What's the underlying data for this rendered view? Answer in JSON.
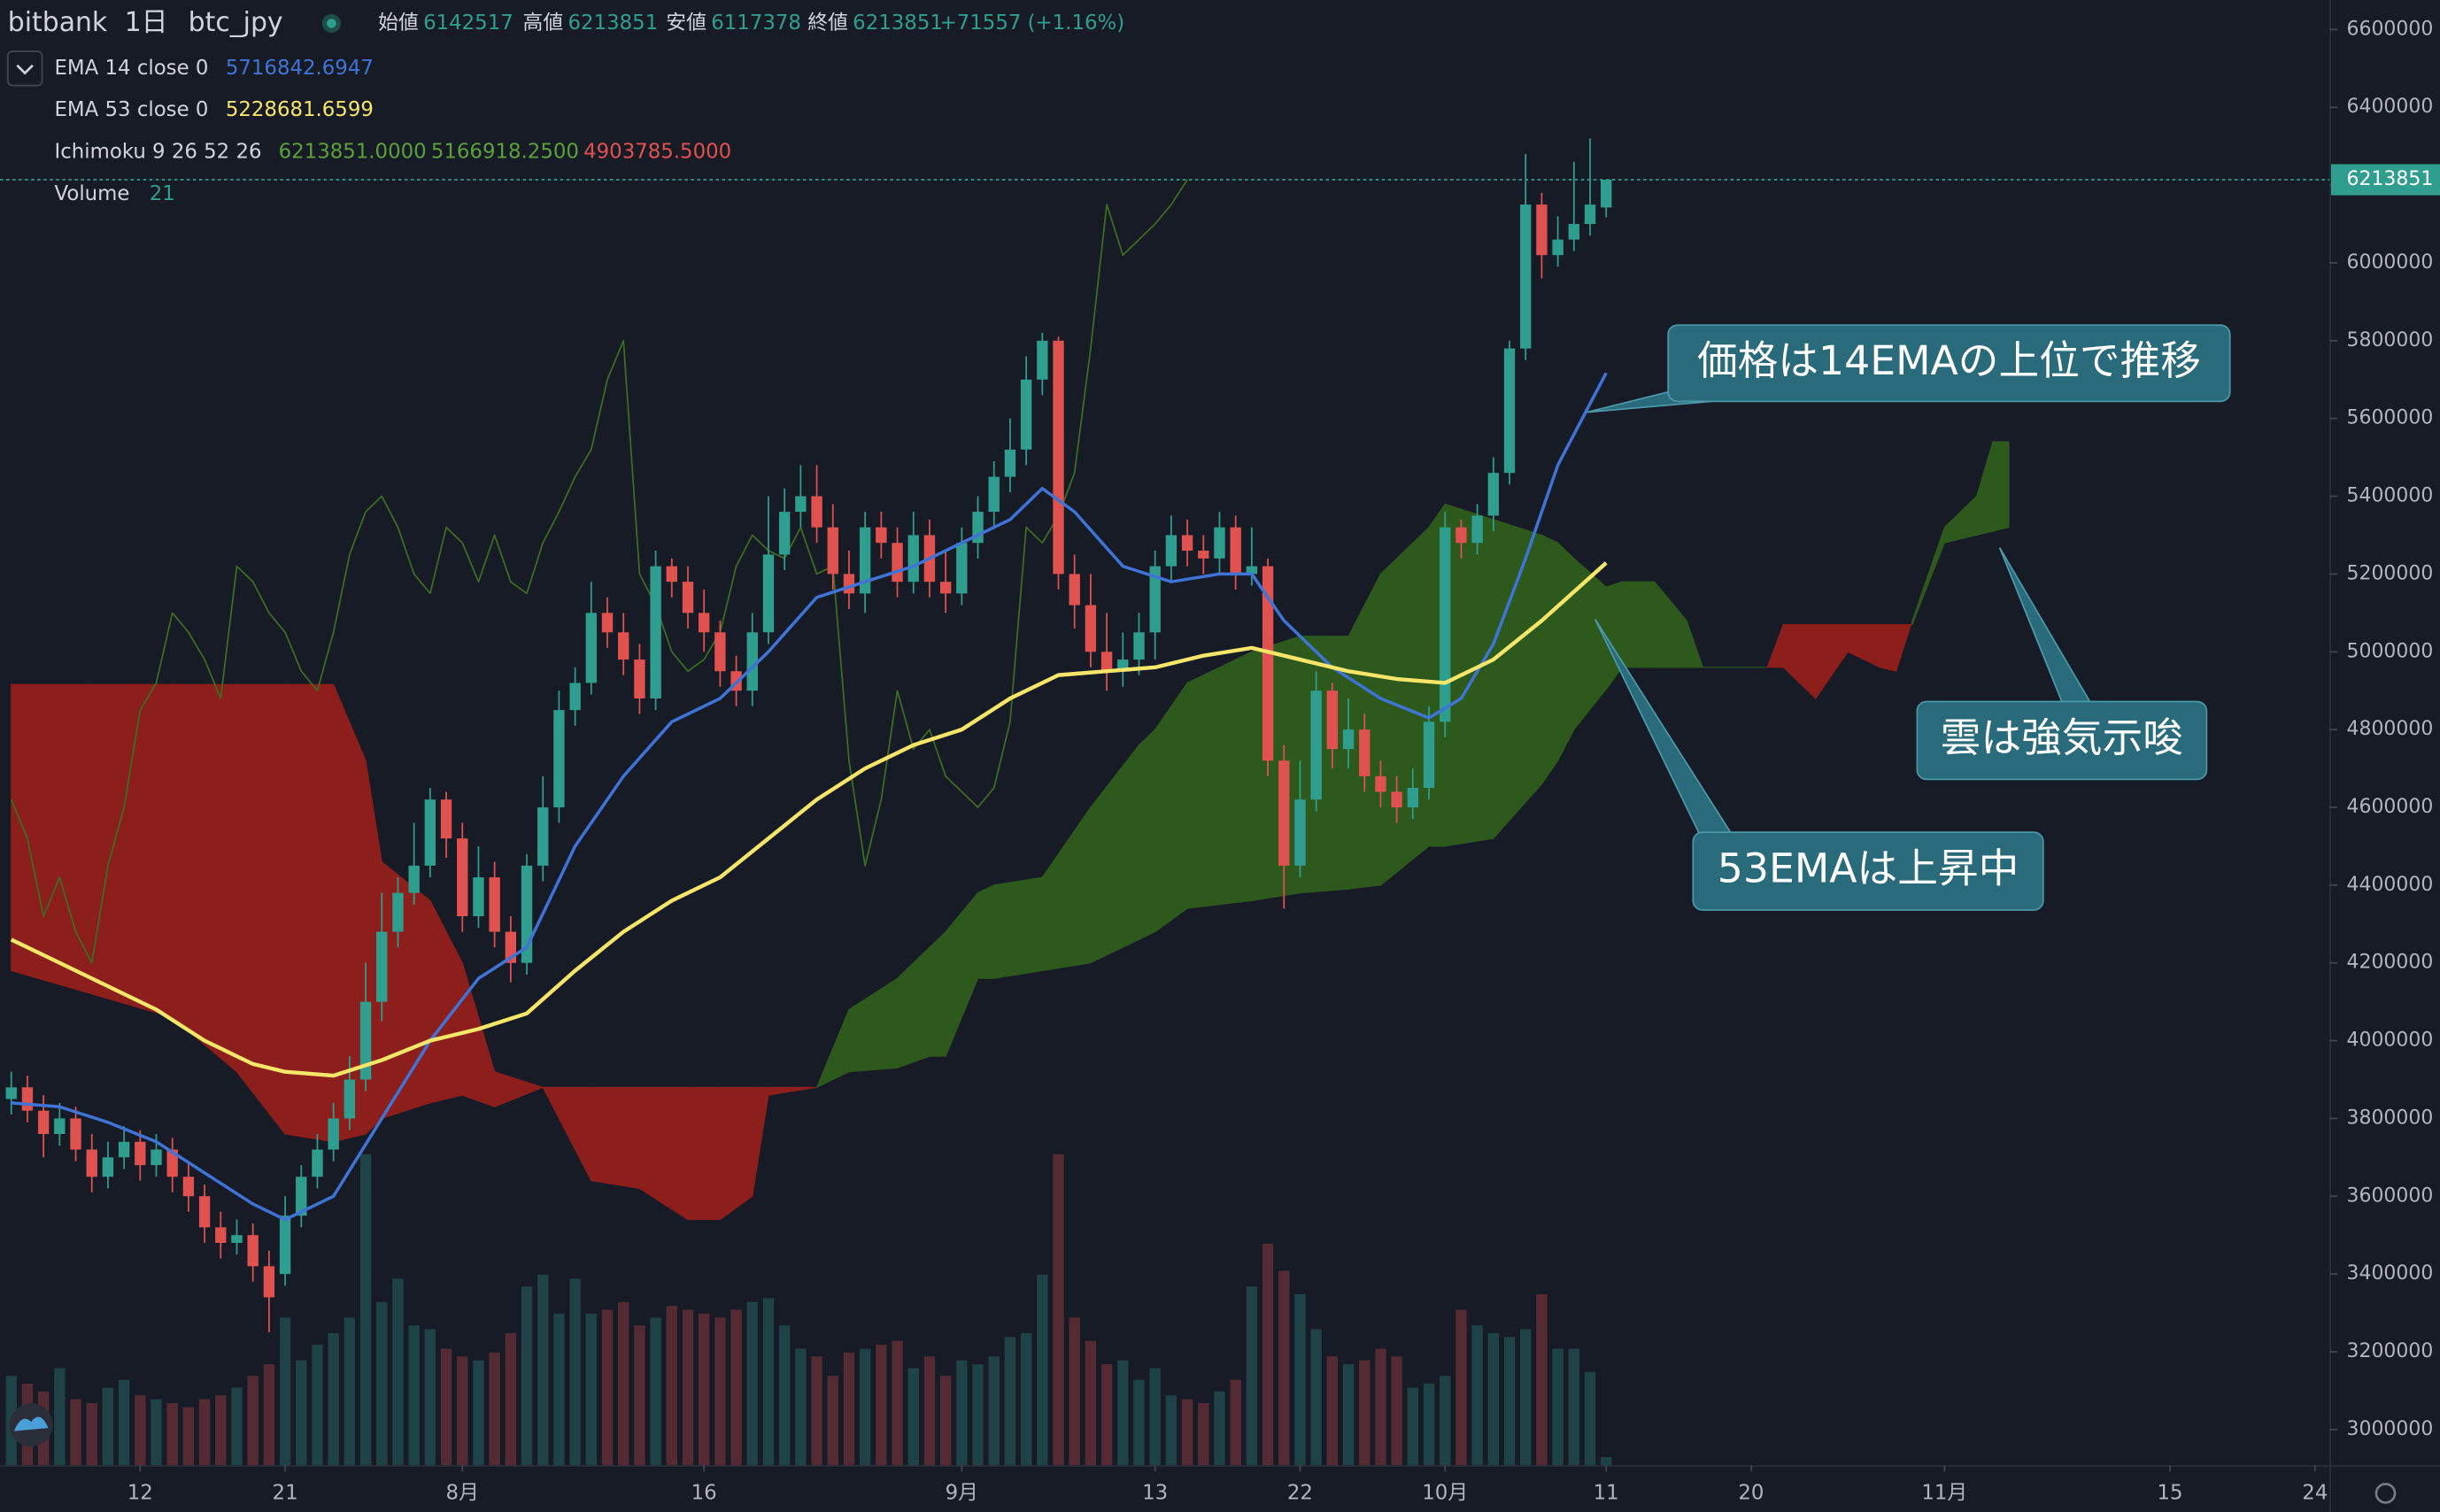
{
  "chart_data": {
    "type": "candlestick",
    "exchange": "bitbank",
    "interval": "1日",
    "symbol": "btc_jpy",
    "ohlc_labels": [
      "始値",
      "高値",
      "安値",
      "終値"
    ],
    "change": "+71557 (+1.16%)",
    "up_color": "#2f9e8f",
    "down_color": "#e0524f",
    "open": [
      3850000,
      3880000,
      3820000,
      3760000,
      3800000,
      3720000,
      3650000,
      3700000,
      3740000,
      3680000,
      3720000,
      3650000,
      3600000,
      3520000,
      3480000,
      3500000,
      3420000,
      3400000,
      3550000,
      3650000,
      3720000,
      3800000,
      3900000,
      4100000,
      4280000,
      4380000,
      4450000,
      4620000,
      4520000,
      4320000,
      4420000,
      4280000,
      4200000,
      4450000,
      4600000,
      4850000,
      4920000,
      5100000,
      5050000,
      4980000,
      4880000,
      5220000,
      5180000,
      5100000,
      5050000,
      4950000,
      4900000,
      5050000,
      5250000,
      5360000,
      5400000,
      5320000,
      5200000,
      5150000,
      5320000,
      5280000,
      5180000,
      5300000,
      5180000,
      5150000,
      5280000,
      5360000,
      5450000,
      5520000,
      5700000,
      5800000,
      5200000,
      5120000,
      5000000,
      4950000,
      4980000,
      5050000,
      5220000,
      5300000,
      5260000,
      5240000,
      5320000,
      5200000,
      5220000,
      4720000,
      4450000,
      4620000,
      4900000,
      4750000,
      4800000,
      4680000,
      4640000,
      4600000,
      4650000,
      4820000,
      5320000,
      5280000,
      5350000,
      5460000,
      5780000,
      6150000,
      6020000,
      6060000,
      6100000,
      6142517
    ],
    "high": [
      3920000,
      3910000,
      3860000,
      3840000,
      3830000,
      3760000,
      3740000,
      3780000,
      3770000,
      3760000,
      3750000,
      3690000,
      3630000,
      3560000,
      3540000,
      3530000,
      3460000,
      3600000,
      3680000,
      3760000,
      3840000,
      3960000,
      4200000,
      4380000,
      4420000,
      4560000,
      4650000,
      4640000,
      4560000,
      4500000,
      4460000,
      4320000,
      4480000,
      4680000,
      4900000,
      4960000,
      5180000,
      5140000,
      5100000,
      5020000,
      5260000,
      5240000,
      5220000,
      5160000,
      5080000,
      4990000,
      5100000,
      5400000,
      5420000,
      5480000,
      5480000,
      5380000,
      5260000,
      5360000,
      5360000,
      5320000,
      5360000,
      5340000,
      5260000,
      5320000,
      5400000,
      5490000,
      5600000,
      5760000,
      5820000,
      5810000,
      5250000,
      5200000,
      5100000,
      5050000,
      5100000,
      5260000,
      5350000,
      5340000,
      5300000,
      5360000,
      5350000,
      5320000,
      5240000,
      4760000,
      4720000,
      4950000,
      4920000,
      4880000,
      4840000,
      4720000,
      4680000,
      4700000,
      4860000,
      5360000,
      5340000,
      5380000,
      5500000,
      5800000,
      6280000,
      6180000,
      6120000,
      6260000,
      6320000,
      6213851
    ],
    "low": [
      3810000,
      3790000,
      3700000,
      3730000,
      3690000,
      3610000,
      3620000,
      3670000,
      3640000,
      3650000,
      3610000,
      3560000,
      3480000,
      3440000,
      3450000,
      3380000,
      3250000,
      3370000,
      3520000,
      3620000,
      3690000,
      3770000,
      3870000,
      4050000,
      4240000,
      4350000,
      4420000,
      4470000,
      4280000,
      4290000,
      4240000,
      4150000,
      4170000,
      4410000,
      4560000,
      4810000,
      4890000,
      5010000,
      4940000,
      4840000,
      4850000,
      5140000,
      5060000,
      5000000,
      4910000,
      4860000,
      4860000,
      5020000,
      5210000,
      5320000,
      5280000,
      5160000,
      5110000,
      5100000,
      5240000,
      5140000,
      5150000,
      5140000,
      5100000,
      5120000,
      5240000,
      5320000,
      5410000,
      5480000,
      5660000,
      5160000,
      5060000,
      4960000,
      4900000,
      4910000,
      4940000,
      4980000,
      5180000,
      5220000,
      5200000,
      5200000,
      5160000,
      5170000,
      4680000,
      4340000,
      4420000,
      4590000,
      4700000,
      4700000,
      4640000,
      4600000,
      4560000,
      4570000,
      4620000,
      4780000,
      5240000,
      5250000,
      5310000,
      5430000,
      5750000,
      5960000,
      5990000,
      6030000,
      6070000,
      6117378
    ],
    "close": [
      3880000,
      3820000,
      3760000,
      3800000,
      3720000,
      3650000,
      3700000,
      3740000,
      3680000,
      3720000,
      3650000,
      3600000,
      3520000,
      3480000,
      3500000,
      3420000,
      3340000,
      3550000,
      3650000,
      3720000,
      3800000,
      3900000,
      4100000,
      4280000,
      4380000,
      4450000,
      4620000,
      4520000,
      4320000,
      4420000,
      4280000,
      4200000,
      4450000,
      4600000,
      4850000,
      4920000,
      5100000,
      5050000,
      4980000,
      4880000,
      5220000,
      5180000,
      5100000,
      5050000,
      4950000,
      4900000,
      5050000,
      5250000,
      5360000,
      5400000,
      5320000,
      5200000,
      5150000,
      5320000,
      5280000,
      5180000,
      5300000,
      5180000,
      5150000,
      5280000,
      5360000,
      5450000,
      5520000,
      5700000,
      5800000,
      5200000,
      5120000,
      5000000,
      4950000,
      4980000,
      5050000,
      5220000,
      5300000,
      5260000,
      5240000,
      5320000,
      5200000,
      5220000,
      4720000,
      4450000,
      4620000,
      4900000,
      4750000,
      4800000,
      4680000,
      4640000,
      4600000,
      4650000,
      4820000,
      5320000,
      5280000,
      5350000,
      5460000,
      5780000,
      6150000,
      6020000,
      6060000,
      6100000,
      6150000,
      6213851
    ],
    "volume_name": "Volume",
    "volume": [
      230,
      210,
      190,
      250,
      170,
      160,
      200,
      220,
      180,
      170,
      160,
      150,
      170,
      180,
      200,
      230,
      260,
      380,
      270,
      310,
      340,
      380,
      800,
      420,
      480,
      360,
      350,
      300,
      280,
      270,
      290,
      340,
      460,
      490,
      390,
      480,
      390,
      400,
      420,
      360,
      380,
      410,
      400,
      390,
      380,
      400,
      420,
      430,
      360,
      300,
      280,
      230,
      290,
      300,
      310,
      320,
      250,
      280,
      230,
      270,
      260,
      280,
      330,
      340,
      490,
      800,
      380,
      320,
      260,
      270,
      220,
      250,
      180,
      170,
      160,
      190,
      220,
      460,
      570,
      500,
      440,
      350,
      280,
      260,
      270,
      300,
      280,
      200,
      210,
      230,
      400,
      360,
      340,
      330,
      350,
      440,
      300,
      300,
      240,
      21
    ],
    "overlays": [
      {
        "name": "EMA 14 close 0",
        "color": "#3f74d6",
        "x": [
          0,
          3,
          6,
          9,
          12,
          15,
          17,
          20,
          23,
          26,
          29,
          32,
          35,
          38,
          41,
          44,
          47,
          50,
          53,
          56,
          59,
          62,
          64,
          66,
          69,
          72,
          75,
          77,
          79,
          82,
          85,
          88,
          90,
          92,
          94,
          96,
          99
        ],
        "values": [
          3840000,
          3830000,
          3790000,
          3740000,
          3660000,
          3580000,
          3540000,
          3600000,
          3800000,
          4000000,
          4160000,
          4240000,
          4500000,
          4680000,
          4820000,
          4880000,
          5000000,
          5140000,
          5180000,
          5220000,
          5280000,
          5340000,
          5420000,
          5360000,
          5220000,
          5180000,
          5200000,
          5200000,
          5080000,
          4960000,
          4880000,
          4830000,
          4880000,
          5020000,
          5240000,
          5480000,
          5716842.6947
        ]
      },
      {
        "name": "EMA 53 close 0",
        "color": "#f5e66a",
        "x": [
          0,
          3,
          6,
          9,
          12,
          15,
          17,
          20,
          23,
          26,
          29,
          32,
          35,
          38,
          41,
          44,
          47,
          50,
          53,
          56,
          59,
          62,
          65,
          68,
          71,
          74,
          77,
          80,
          83,
          86,
          89,
          92,
          95,
          99
        ],
        "values": [
          4260000,
          4200000,
          4140000,
          4080000,
          4000000,
          3940000,
          3920000,
          3910000,
          3950000,
          4000000,
          4030000,
          4070000,
          4180000,
          4280000,
          4360000,
          4420000,
          4520000,
          4620000,
          4700000,
          4760000,
          4800000,
          4880000,
          4940000,
          4950000,
          4960000,
          4990000,
          5010000,
          4980000,
          4950000,
          4930000,
          4920000,
          4980000,
          5080000,
          5228681.6599
        ]
      }
    ],
    "ichimoku": {
      "name": "Ichimoku 9 26 52 26",
      "legend_values": [
        "6213851.0000",
        "5166918.2500",
        "4903785.5000"
      ],
      "legend_colors": [
        "#5aa13a",
        "#5aa13a",
        "#e0524f"
      ],
      "lagging_color": "#3b6e22",
      "cloud_up_color": "#2d5a1c",
      "cloud_down_color": "#8c1f1c",
      "lagging_span": [
        4620000,
        4520000,
        4320000,
        4420000,
        4280000,
        4200000,
        4450000,
        4600000,
        4850000,
        4920000,
        5100000,
        5050000,
        4980000,
        4880000,
        5220000,
        5180000,
        5100000,
        5050000,
        4950000,
        4900000,
        5050000,
        5250000,
        5360000,
        5400000,
        5320000,
        5200000,
        5150000,
        5320000,
        5280000,
        5180000,
        5300000,
        5180000,
        5150000,
        5280000,
        5360000,
        5450000,
        5520000,
        5700000,
        5800000,
        5200000,
        5120000,
        5000000,
        4950000,
        4980000,
        5050000,
        5220000,
        5300000,
        5260000,
        5240000,
        5320000,
        5200000,
        5220000,
        4720000,
        4450000,
        4620000,
        4900000,
        4750000,
        4800000,
        4680000,
        4640000,
        4600000,
        4650000,
        4820000,
        5320000,
        5280000,
        5350000,
        5460000,
        5780000,
        6150000,
        6020000,
        6060000,
        6100000,
        6150000,
        6213851
      ],
      "cloud": {
        "x": [
          0,
          5,
          10,
          14,
          17,
          20,
          22,
          23,
          26,
          28,
          30,
          33,
          36,
          39,
          42,
          44,
          46,
          47,
          50,
          52,
          55,
          57,
          58,
          60,
          61,
          64,
          67,
          70,
          71,
          73,
          77,
          80,
          83,
          85,
          88,
          89,
          92,
          95,
          96,
          97,
          99,
          100,
          102,
          104,
          105,
          109,
          110,
          112,
          114,
          116,
          117,
          118,
          120,
          122,
          123,
          124
        ],
        "span_a": [
          4180000,
          4120000,
          4060000,
          3920000,
          3760000,
          3740000,
          3760000,
          3800000,
          3840000,
          3860000,
          3830000,
          3880000,
          3640000,
          3620000,
          3540000,
          3540000,
          3600000,
          3860000,
          3880000,
          4080000,
          4160000,
          4240000,
          4280000,
          4380000,
          4400000,
          4420000,
          4600000,
          4760000,
          4800000,
          4920000,
          5000000,
          5040000,
          5040000,
          5200000,
          5320000,
          5380000,
          5340000,
          5300000,
          5280000,
          5240000,
          5166918.25,
          5180000,
          5180000,
          5080000,
          4960000,
          4960000,
          4960000,
          4880000,
          5000000,
          4960000,
          4950000,
          5080000,
          5320000,
          5400000,
          5540000,
          5540000
        ],
        "span_b": [
          4916000,
          4916000,
          4916000,
          4916000,
          4916000,
          4916000,
          4720000,
          4460000,
          4360000,
          4200000,
          3920000,
          3880000,
          3880000,
          3880000,
          3880000,
          3880000,
          3880000,
          3880000,
          3880000,
          3920000,
          3930000,
          3960000,
          3960000,
          4160000,
          4160000,
          4180000,
          4200000,
          4260000,
          4280000,
          4340000,
          4360000,
          4380000,
          4390000,
          4400000,
          4500000,
          4500000,
          4520000,
          4660000,
          4720000,
          4800000,
          4903785.5,
          4960000,
          4960000,
          4960000,
          4960000,
          4960000,
          5070000,
          5070000,
          5070000,
          5070000,
          5070000,
          5070000,
          5280000,
          5300000,
          5310000,
          5320000
        ]
      }
    },
    "xlim": [
      -0.7,
      143.9
    ],
    "xticks": [
      {
        "value": 8,
        "label": "12"
      },
      {
        "value": 17,
        "label": "21"
      },
      {
        "value": 28,
        "label": "8月"
      },
      {
        "value": 43,
        "label": "16"
      },
      {
        "value": 59,
        "label": "9月"
      },
      {
        "value": 71,
        "label": "13"
      },
      {
        "value": 80,
        "label": "22"
      },
      {
        "value": 89,
        "label": "10月"
      },
      {
        "value": 99,
        "label": "11"
      },
      {
        "value": 108,
        "label": "20"
      },
      {
        "value": 120,
        "label": "11月"
      },
      {
        "value": 134,
        "label": "15"
      },
      {
        "value": 143,
        "label": "24"
      }
    ],
    "ylim": [
      2908000,
      6676000
    ],
    "yticks": [
      3000000,
      3200000,
      3400000,
      3600000,
      3800000,
      4000000,
      4200000,
      4400000,
      4600000,
      4800000,
      5000000,
      5200000,
      5400000,
      5600000,
      5800000,
      6000000,
      6200000,
      6400000,
      6600000
    ],
    "annotations": [
      {
        "text": "価格は14EMAの上位で推移"
      },
      {
        "text": "53EMAは上昇中"
      },
      {
        "text": "雲は強気示唆"
      }
    ]
  }
}
